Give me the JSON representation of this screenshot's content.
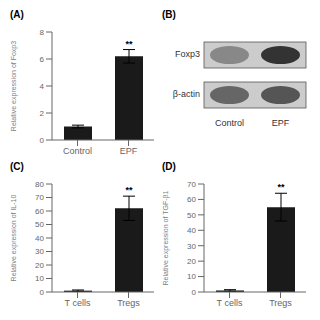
{
  "chart_data": [
    {
      "type": "bar",
      "title": "(A)",
      "categories": [
        "Control",
        "EPF"
      ],
      "values": [
        1.0,
        6.2
      ],
      "errors": [
        0.1,
        0.5
      ],
      "ylabel": "Relative expression of Foxp3",
      "ylim": [
        0,
        8
      ],
      "yticks": [
        0,
        2,
        4,
        6,
        8
      ],
      "color": "#1a1a1a",
      "grid": false,
      "annotations": [
        {
          "text": "**",
          "x": "EPF"
        }
      ]
    },
    {
      "type": "blot",
      "title": "(B)",
      "categories": [
        "Control",
        "EPF"
      ],
      "color": "#cccccc",
      "series": [
        {
          "name": "Foxp3",
          "colors": [
            "#888888",
            "#333333"
          ]
        },
        {
          "name": "β-actin",
          "colors": [
            "#666666",
            "#555555"
          ]
        }
      ]
    },
    {
      "type": "bar",
      "title": "(C)",
      "categories": [
        "T cells",
        "Tregs"
      ],
      "values": [
        1.0,
        62.0
      ],
      "errors": [
        0.5,
        9.0
      ],
      "ylabel": "Relative expression of IL-10",
      "ylim": [
        0,
        80
      ],
      "yticks": [
        0,
        10,
        20,
        30,
        40,
        50,
        60,
        70,
        80
      ],
      "color": "#1a1a1a",
      "grid": false,
      "annotations": [
        {
          "text": "**",
          "x": "Tregs"
        }
      ]
    },
    {
      "type": "bar",
      "title": "(D)",
      "categories": [
        "T cells",
        "Tregs"
      ],
      "values": [
        1.0,
        55.0
      ],
      "errors": [
        0.5,
        9.0
      ],
      "ylabel": "Relative expression of TGF-β1",
      "ylim": [
        0,
        70
      ],
      "yticks": [
        0,
        10,
        20,
        30,
        40,
        50,
        60,
        70
      ],
      "color": "#1a1a1a",
      "grid": false,
      "annotations": [
        {
          "text": "**",
          "x": "Tregs"
        }
      ]
    }
  ]
}
